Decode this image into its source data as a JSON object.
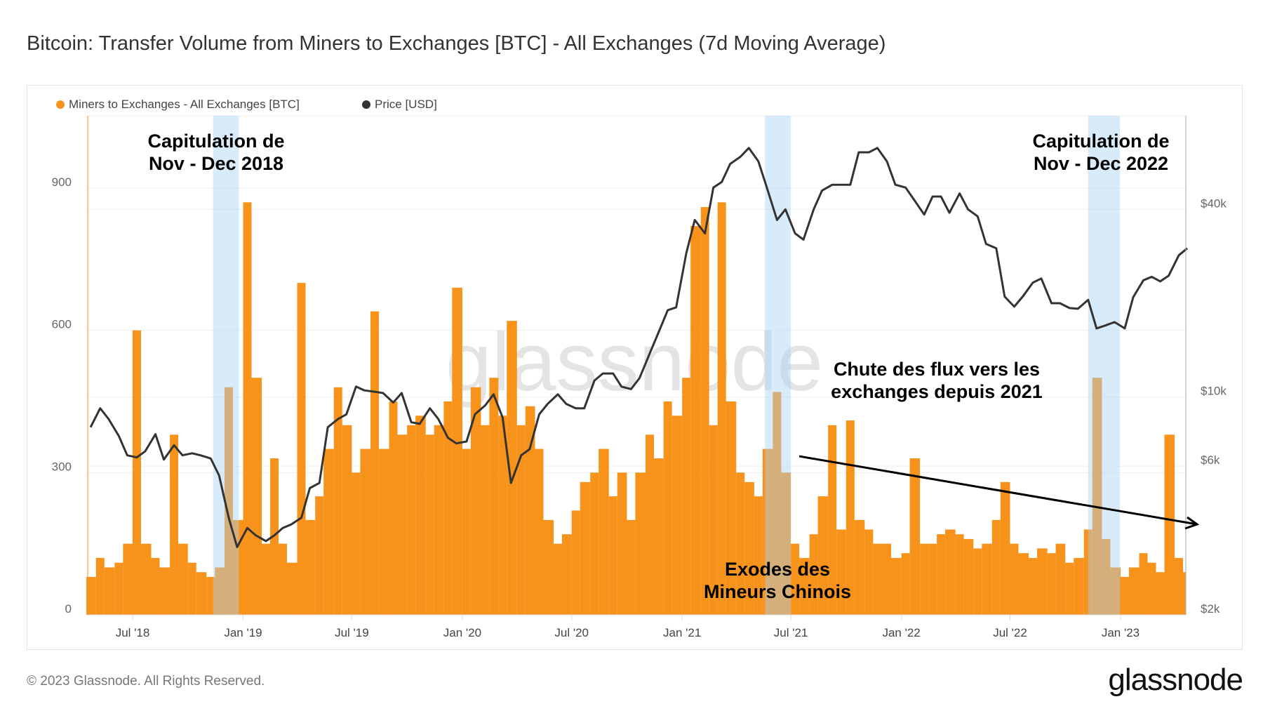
{
  "title": "Bitcoin: Transfer Volume from Miners to Exchanges [BTC] - All Exchanges (7d Moving Average)",
  "footer": "© 2023 Glassnode. All Rights Reserved.",
  "logo": "glassnode",
  "watermark": "glassnode",
  "annotations": {
    "cap2018": [
      "Capitulation de",
      "Nov - Dec 2018"
    ],
    "cap2022": [
      "Capitulation de",
      "Nov - Dec 2022"
    ],
    "chute": [
      "Chute des flux vers les",
      "exchanges depuis 2021"
    ],
    "exode": [
      "Exodes des",
      "Mineurs Chinois"
    ]
  },
  "chart_data": {
    "type": "bar+line",
    "legend_position": "top-left",
    "grid": true,
    "colors": {
      "flow": "#f7931a",
      "price": "#333333",
      "highlight": "#a9d3f3"
    },
    "x_ticks": [
      "Jul '18",
      "Jan '19",
      "Jul '19",
      "Jan '20",
      "Jul '20",
      "Jan '21",
      "Jul '21",
      "Jan '22",
      "Jul '22",
      "Jan '23"
    ],
    "x_tick_dates": [
      "2018-07-01",
      "2019-01-01",
      "2019-07-01",
      "2020-01-01",
      "2020-07-01",
      "2021-01-01",
      "2021-07-01",
      "2022-01-01",
      "2022-07-01",
      "2023-01-01"
    ],
    "y_left": {
      "ticks": [
        0,
        300,
        600,
        900
      ],
      "labels": [
        "0",
        "300",
        "600",
        "900"
      ],
      "range": [
        0,
        960
      ]
    },
    "y_right": {
      "scale": "log",
      "ticks": [
        2000,
        6000,
        10000,
        40000
      ],
      "labels": [
        "$2k",
        "$6k",
        "$10k",
        "$40k"
      ]
    },
    "highlight_periods": [
      [
        "2018-11-12",
        "2018-12-25"
      ],
      [
        "2021-05-19",
        "2021-07-01"
      ],
      [
        "2022-11-08",
        "2022-12-31"
      ]
    ],
    "trend_arrow": {
      "from": [
        "2021-07-15",
        330
      ],
      "to": [
        "2023-04-25",
        160
      ]
    },
    "x": [
      "2018-04-15",
      "2018-05-01",
      "2018-05-15",
      "2018-06-01",
      "2018-06-15",
      "2018-07-01",
      "2018-07-15",
      "2018-08-01",
      "2018-08-15",
      "2018-09-01",
      "2018-09-15",
      "2018-10-01",
      "2018-10-15",
      "2018-11-01",
      "2018-11-15",
      "2018-12-01",
      "2018-12-15",
      "2019-01-01",
      "2019-01-15",
      "2019-02-01",
      "2019-02-15",
      "2019-03-01",
      "2019-03-15",
      "2019-04-01",
      "2019-04-15",
      "2019-05-01",
      "2019-05-15",
      "2019-06-01",
      "2019-06-15",
      "2019-07-01",
      "2019-07-15",
      "2019-08-01",
      "2019-08-15",
      "2019-09-01",
      "2019-09-15",
      "2019-10-01",
      "2019-10-15",
      "2019-11-01",
      "2019-11-15",
      "2019-12-01",
      "2019-12-15",
      "2020-01-01",
      "2020-01-15",
      "2020-02-01",
      "2020-02-15",
      "2020-03-01",
      "2020-03-15",
      "2020-04-01",
      "2020-04-15",
      "2020-05-01",
      "2020-05-15",
      "2020-06-01",
      "2020-06-15",
      "2020-07-01",
      "2020-07-15",
      "2020-08-01",
      "2020-08-15",
      "2020-09-01",
      "2020-09-15",
      "2020-10-01",
      "2020-10-15",
      "2020-11-01",
      "2020-11-15",
      "2020-12-01",
      "2020-12-15",
      "2021-01-01",
      "2021-01-15",
      "2021-02-01",
      "2021-02-15",
      "2021-03-01",
      "2021-03-15",
      "2021-04-01",
      "2021-04-15",
      "2021-05-01",
      "2021-05-15",
      "2021-06-01",
      "2021-06-15",
      "2021-07-01",
      "2021-07-15",
      "2021-08-01",
      "2021-08-15",
      "2021-09-01",
      "2021-09-15",
      "2021-10-01",
      "2021-10-15",
      "2021-11-01",
      "2021-11-15",
      "2021-12-01",
      "2021-12-15",
      "2022-01-01",
      "2022-01-15",
      "2022-02-01",
      "2022-02-15",
      "2022-03-01",
      "2022-03-15",
      "2022-04-01",
      "2022-04-15",
      "2022-05-01",
      "2022-05-15",
      "2022-06-01",
      "2022-06-15",
      "2022-07-01",
      "2022-07-15",
      "2022-08-01",
      "2022-08-15",
      "2022-09-01",
      "2022-09-15",
      "2022-10-01",
      "2022-10-15",
      "2022-11-01",
      "2022-11-15",
      "2022-12-01",
      "2022-12-15",
      "2023-01-01",
      "2023-01-15",
      "2023-02-01",
      "2023-02-15",
      "2023-03-01",
      "2023-03-15",
      "2023-04-01",
      "2023-04-15"
    ],
    "series": [
      {
        "name": "Miners to Exchanges - All Exchanges [BTC]",
        "axis": "left",
        "type": "bar",
        "values": [
          80,
          120,
          100,
          110,
          150,
          600,
          150,
          120,
          100,
          380,
          150,
          110,
          90,
          80,
          100,
          480,
          200,
          870,
          500,
          150,
          330,
          150,
          110,
          700,
          200,
          250,
          350,
          480,
          400,
          300,
          350,
          640,
          350,
          450,
          380,
          400,
          420,
          380,
          400,
          450,
          690,
          350,
          480,
          400,
          500,
          420,
          620,
          400,
          440,
          350,
          200,
          150,
          170,
          220,
          280,
          300,
          350,
          250,
          300,
          200,
          300,
          380,
          330,
          450,
          420,
          500,
          820,
          860,
          400,
          870,
          450,
          300,
          280,
          250,
          350,
          470,
          300,
          150,
          120,
          170,
          250,
          400,
          180,
          410,
          200,
          180,
          150,
          150,
          120,
          130,
          330,
          150,
          150,
          170,
          180,
          170,
          160,
          140,
          150,
          200,
          280,
          150,
          130,
          120,
          140,
          130,
          150,
          110,
          120,
          180,
          500,
          160,
          100,
          80,
          100,
          130,
          110,
          90,
          380,
          120,
          90
        ]
      },
      {
        "name": "Price [USD]",
        "axis": "right",
        "type": "line",
        "values": [
          8000,
          9200,
          8500,
          7500,
          6500,
          6400,
          6700,
          7600,
          6300,
          7000,
          6500,
          6600,
          6500,
          6350,
          5600,
          4100,
          3300,
          3800,
          3600,
          3450,
          3600,
          3800,
          3900,
          4100,
          5100,
          5300,
          8000,
          8500,
          8800,
          10800,
          10500,
          10400,
          10300,
          9600,
          10300,
          8300,
          8200,
          9200,
          8500,
          7400,
          7100,
          7200,
          8800,
          9400,
          10200,
          8600,
          5300,
          6500,
          6800,
          8800,
          9500,
          10200,
          9500,
          9200,
          9200,
          11300,
          11900,
          11900,
          10800,
          10600,
          11500,
          13800,
          16000,
          19000,
          19400,
          29000,
          37000,
          33500,
          47000,
          49000,
          56000,
          59000,
          63000,
          57000,
          47000,
          37000,
          40000,
          33500,
          32000,
          40000,
          46000,
          48000,
          48000,
          48000,
          61000,
          61000,
          63000,
          57000,
          48000,
          47000,
          43000,
          38500,
          44000,
          44000,
          39000,
          45000,
          40000,
          38000,
          31000,
          30000,
          21000,
          19500,
          21000,
          23300,
          24000,
          20000,
          20000,
          19300,
          19200,
          20500,
          16600,
          17000,
          17400,
          16600,
          20900,
          23700,
          24300,
          23500,
          24500,
          28500,
          30000
        ]
      }
    ]
  }
}
